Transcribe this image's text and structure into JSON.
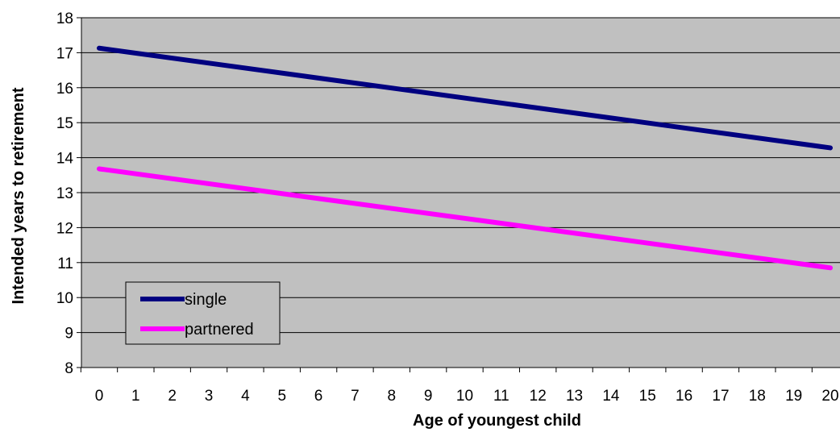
{
  "colors": {
    "plot_background": "#c0c0c0",
    "gridline": "#000000",
    "axis": "#000000",
    "single": "#000080",
    "partnered": "#ff00ff"
  },
  "chart_data": {
    "type": "line",
    "title": "",
    "xlabel": "Age of youngest child",
    "ylabel": "Intended years to retirement",
    "x": [
      0,
      20
    ],
    "xlim": [
      0,
      20
    ],
    "ylim": [
      8,
      18
    ],
    "xticks": [
      "0",
      "1",
      "2",
      "3",
      "4",
      "5",
      "6",
      "7",
      "8",
      "9",
      "10",
      "11",
      "12",
      "13",
      "14",
      "15",
      "16",
      "17",
      "18",
      "19",
      "20"
    ],
    "yticks": [
      "8",
      "9",
      "10",
      "11",
      "12",
      "13",
      "14",
      "15",
      "16",
      "17",
      "18"
    ],
    "grid": "horizontal",
    "legend_position": "bottom-left",
    "series": [
      {
        "name": "single",
        "values": [
          17.13,
          14.28
        ],
        "color": "#000080"
      },
      {
        "name": "partnered",
        "values": [
          13.68,
          10.85
        ],
        "color": "#ff00ff"
      }
    ]
  }
}
